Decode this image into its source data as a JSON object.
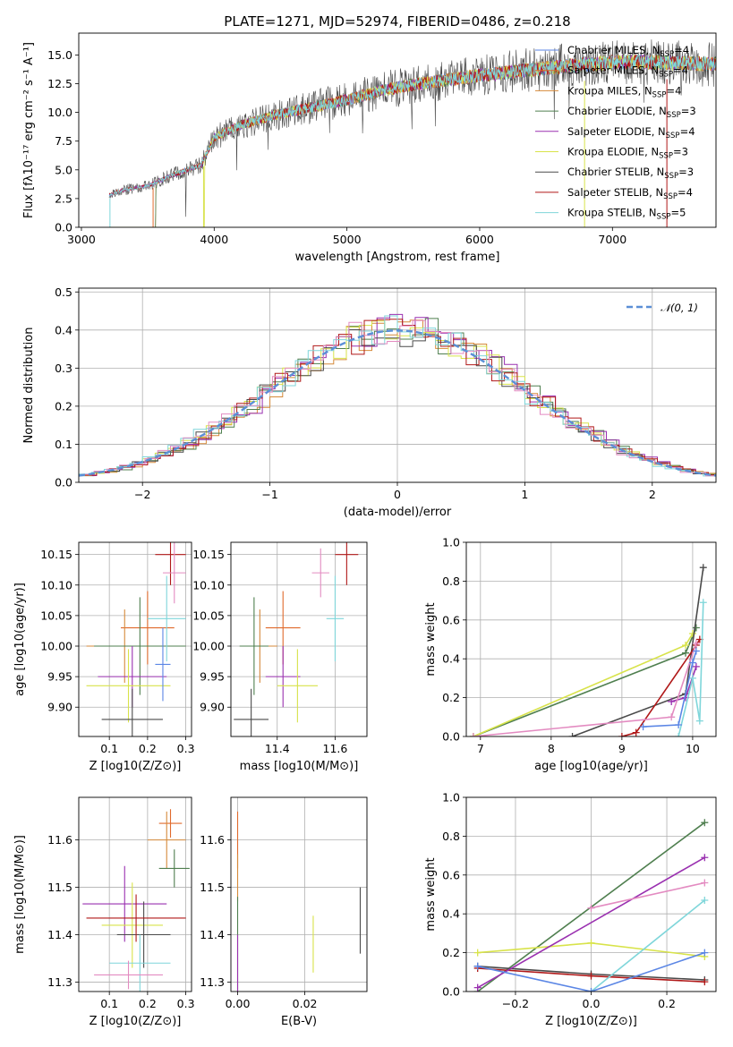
{
  "chart_data": [
    {
      "id": "spectrum",
      "type": "line",
      "title": "PLATE=1271, MJD=52974, FIBERID=0486, z=0.218",
      "xlabel": "wavelength [Angstrom, rest frame]",
      "ylabel": "Flux [fλ10⁻¹⁷ erg cm⁻² s⁻¹ A⁻¹]",
      "xlim": [
        2980,
        7780
      ],
      "ylim": [
        0,
        16.9
      ],
      "xticks": [
        3000,
        4000,
        5000,
        6000,
        7000
      ],
      "yticks": [
        0.0,
        2.5,
        5.0,
        7.5,
        10.0,
        12.5,
        15.0
      ],
      "grid": false,
      "legend_position": "top-right",
      "legend": [
        "Chabrier MILES, N_SSP=4",
        "Salpeter MILES, N_SSP=4",
        "Kroupa MILES, N_SSP=4",
        "Chabrier ELODIE, N_SSP=3",
        "Salpeter ELODIE, N_SSP=4",
        "Kroupa ELODIE, N_SSP=3",
        "Chabrier STELIB, N_SSP=3",
        "Salpeter STELIB, N_SSP=4",
        "Kroupa STELIB, N_SSP=5"
      ],
      "continuum_x": [
        3210,
        3300,
        3500,
        3700,
        3900,
        4000,
        4200,
        4500,
        4800,
        5000,
        5300,
        5600,
        6000,
        6300,
        6700,
        7100,
        7500,
        7780
      ],
      "continuum_y": [
        2.8,
        3.2,
        3.6,
        4.6,
        5.4,
        7.8,
        8.9,
        9.9,
        10.6,
        11.1,
        12.0,
        12.6,
        13.2,
        13.6,
        14.1,
        14.4,
        14.3,
        14.2
      ]
    },
    {
      "id": "residuals",
      "type": "line",
      "xlabel": "(data-model)/error",
      "ylabel": "Normed distribution",
      "xlim": [
        -2.5,
        2.5
      ],
      "ylim": [
        0,
        0.51
      ],
      "xticks": [
        -2,
        -1,
        0,
        1,
        2
      ],
      "yticks": [
        0.0,
        0.1,
        0.2,
        0.3,
        0.4,
        0.5
      ],
      "grid": true,
      "legend_position": "top-right",
      "legend": [
        "𝒩(0, 1)"
      ]
    },
    {
      "id": "age_vs_Z",
      "type": "scatter",
      "xlabel": "Z [log10(Z/Z⊙)]",
      "ylabel": "age  [log10(age/yr)]",
      "xlim": [
        0.02,
        0.315
      ],
      "ylim": [
        9.852,
        10.17
      ],
      "xticks": [
        0.1,
        0.2,
        0.3
      ],
      "yticks": [
        9.9,
        9.95,
        10.0,
        10.05,
        10.1,
        10.15
      ],
      "grid": true,
      "points": [
        {
          "x": 0.2,
          "y": 10.03,
          "xerr": 0.07,
          "yerr": 0.06
        },
        {
          "x": 0.14,
          "y": 10.0,
          "xerr": 0.1,
          "yerr": 0.06
        },
        {
          "x": 0.18,
          "y": 10.0,
          "xerr": 0.12,
          "yerr": 0.08
        },
        {
          "x": 0.16,
          "y": 9.95,
          "xerr": 0.09,
          "yerr": 0.05
        },
        {
          "x": 0.15,
          "y": 9.935,
          "xerr": 0.11,
          "yerr": 0.06
        },
        {
          "x": 0.16,
          "y": 9.88,
          "xerr": 0.08,
          "yerr": 0.05
        },
        {
          "x": 0.26,
          "y": 10.15,
          "xerr": 0.04,
          "yerr": 0.05
        },
        {
          "x": 0.25,
          "y": 10.045,
          "xerr": 0.05,
          "yerr": 0.07
        },
        {
          "x": 0.27,
          "y": 10.12,
          "xerr": 0.03,
          "yerr": 0.05
        },
        {
          "x": 0.24,
          "y": 9.97,
          "xerr": 0.02,
          "yerr": 0.06
        }
      ]
    },
    {
      "id": "age_vs_mass",
      "type": "scatter",
      "xlabel": "mass [log10(M/M⊙)]",
      "ylabel": "",
      "xlim": [
        11.24,
        11.71
      ],
      "ylim": [
        9.852,
        10.17
      ],
      "xticks": [
        11.4,
        11.6
      ],
      "yticks": [
        9.9,
        9.95,
        10.0,
        10.05,
        10.1,
        10.15
      ],
      "grid": true,
      "points": [
        {
          "x": 11.42,
          "y": 10.03,
          "xerr": 0.06,
          "yerr": 0.06
        },
        {
          "x": 11.34,
          "y": 10.0,
          "xerr": 0.06,
          "yerr": 0.06
        },
        {
          "x": 11.32,
          "y": 10.0,
          "xerr": 0.05,
          "yerr": 0.08
        },
        {
          "x": 11.42,
          "y": 9.95,
          "xerr": 0.06,
          "yerr": 0.05
        },
        {
          "x": 11.47,
          "y": 9.935,
          "xerr": 0.07,
          "yerr": 0.06
        },
        {
          "x": 11.31,
          "y": 9.88,
          "xerr": 0.06,
          "yerr": 0.05
        },
        {
          "x": 11.64,
          "y": 10.15,
          "xerr": 0.04,
          "yerr": 0.05
        },
        {
          "x": 11.6,
          "y": 10.045,
          "xerr": 0.03,
          "yerr": 0.07
        },
        {
          "x": 11.55,
          "y": 10.12,
          "xerr": 0.03,
          "yerr": 0.04
        }
      ]
    },
    {
      "id": "weight_vs_age",
      "type": "line",
      "xlabel": "age  [log10(age/yr)]",
      "ylabel": "mass weight",
      "xlim": [
        6.8,
        10.33
      ],
      "ylim": [
        0,
        1.0
      ],
      "xticks": [
        7,
        8,
        9,
        10
      ],
      "yticks": [
        0.0,
        0.2,
        0.4,
        0.6,
        0.8,
        1.0
      ],
      "grid": true,
      "series": [
        {
          "x": [
            6.9,
            9.9,
            10.05
          ],
          "y": [
            0.0,
            0.43,
            0.56
          ]
        },
        {
          "x": [
            6.9,
            9.9,
            10.0
          ],
          "y": [
            0.0,
            0.47,
            0.53
          ]
        },
        {
          "x": [
            8.3,
            9.9,
            10.15
          ],
          "y": [
            0.0,
            0.22,
            0.87
          ]
        },
        {
          "x": [
            9.0,
            9.2,
            10.05,
            10.1
          ],
          "y": [
            0.0,
            0.02,
            0.47,
            0.5
          ]
        },
        {
          "x": [
            9.7,
            9.9,
            10.05
          ],
          "y": [
            0.18,
            0.2,
            0.36
          ]
        },
        {
          "x": [
            9.8,
            10.0,
            10.1,
            10.15
          ],
          "y": [
            0.0,
            0.3,
            0.08,
            0.69
          ]
        },
        {
          "x": [
            6.9,
            9.7,
            10.05
          ],
          "y": [
            0.0,
            0.1,
            0.48
          ]
        },
        {
          "x": [
            9.3,
            9.8,
            10.0,
            10.05
          ],
          "y": [
            0.05,
            0.06,
            0.38,
            0.44
          ]
        }
      ]
    },
    {
      "id": "mass_vs_Z",
      "type": "scatter",
      "xlabel": "Z [log10(Z/Z⊙)]",
      "ylabel": "mass [log10(M/M⊙)]",
      "xlim": [
        0.02,
        0.315
      ],
      "ylim": [
        11.28,
        11.69
      ],
      "xticks": [
        0.1,
        0.2,
        0.3
      ],
      "yticks": [
        11.3,
        11.4,
        11.5,
        11.6
      ],
      "grid": true,
      "points": [
        {
          "x": 0.26,
          "y": 11.635,
          "xerr": 0.03,
          "yerr": 0.03
        },
        {
          "x": 0.25,
          "y": 11.6,
          "xerr": 0.05,
          "yerr": 0.06
        },
        {
          "x": 0.27,
          "y": 11.54,
          "xerr": 0.04,
          "yerr": 0.04
        },
        {
          "x": 0.14,
          "y": 11.465,
          "xerr": 0.11,
          "yerr": 0.08
        },
        {
          "x": 0.16,
          "y": 11.42,
          "xerr": 0.08,
          "yerr": 0.09
        },
        {
          "x": 0.19,
          "y": 11.4,
          "xerr": 0.07,
          "yerr": 0.07
        },
        {
          "x": 0.17,
          "y": 11.435,
          "xerr": 0.13,
          "yerr": 0.05
        },
        {
          "x": 0.18,
          "y": 11.34,
          "xerr": 0.08,
          "yerr": 0.06
        },
        {
          "x": 0.15,
          "y": 11.315,
          "xerr": 0.09,
          "yerr": 0.03
        }
      ]
    },
    {
      "id": "mass_vs_ebv",
      "type": "scatter",
      "xlabel": "E(B-V)",
      "ylabel": "",
      "xlim": [
        -0.002,
        0.0385
      ],
      "ylim": [
        11.28,
        11.69
      ],
      "xticks": [
        0.0,
        0.02
      ],
      "yticks": [
        11.3,
        11.4,
        11.5,
        11.6
      ],
      "grid": true,
      "points": [
        {
          "x": 0.0,
          "y": 11.6,
          "xerr": 0,
          "yerr": 0.06
        },
        {
          "x": 0.0,
          "y": 11.52,
          "xerr": 0,
          "yerr": 0.05
        },
        {
          "x": 0.0,
          "y": 11.38,
          "xerr": 0,
          "yerr": 0.1
        },
        {
          "x": 0.0,
          "y": 11.34,
          "xerr": 0,
          "yerr": 0.06
        },
        {
          "x": 0.0225,
          "y": 11.38,
          "xerr": 0,
          "yerr": 0.06
        },
        {
          "x": 0.0365,
          "y": 11.43,
          "xerr": 0,
          "yerr": 0.07
        }
      ]
    },
    {
      "id": "weight_vs_Z",
      "type": "line",
      "xlabel": "Z [log10(Z/Z⊙)]",
      "ylabel": "mass weight",
      "xlim": [
        -0.33,
        0.33
      ],
      "ylim": [
        0,
        1.0
      ],
      "xticks": [
        -0.2,
        0.0,
        0.2
      ],
      "yticks": [
        0.0,
        0.2,
        0.4,
        0.6,
        0.8,
        1.0
      ],
      "grid": true,
      "series": [
        {
          "x": [
            -0.3,
            0.3
          ],
          "y": [
            0.0,
            0.87
          ]
        },
        {
          "x": [
            -0.3,
            0.0,
            0.3
          ],
          "y": [
            0.2,
            0.25,
            0.18
          ]
        },
        {
          "x": [
            -0.3,
            0.0,
            0.3
          ],
          "y": [
            0.13,
            0.09,
            0.06
          ]
        },
        {
          "x": [
            -0.3,
            0.0,
            0.3
          ],
          "y": [
            0.12,
            0.08,
            0.05
          ]
        },
        {
          "x": [
            -0.3,
            0.3
          ],
          "y": [
            0.02,
            0.69
          ]
        },
        {
          "x": [
            0.0,
            0.3
          ],
          "y": [
            0.0,
            0.47
          ]
        },
        {
          "x": [
            0.0,
            0.3
          ],
          "y": [
            0.43,
            0.56
          ]
        },
        {
          "x": [
            -0.3,
            0.0,
            0.3
          ],
          "y": [
            0.13,
            0.0,
            0.2
          ]
        }
      ]
    }
  ]
}
